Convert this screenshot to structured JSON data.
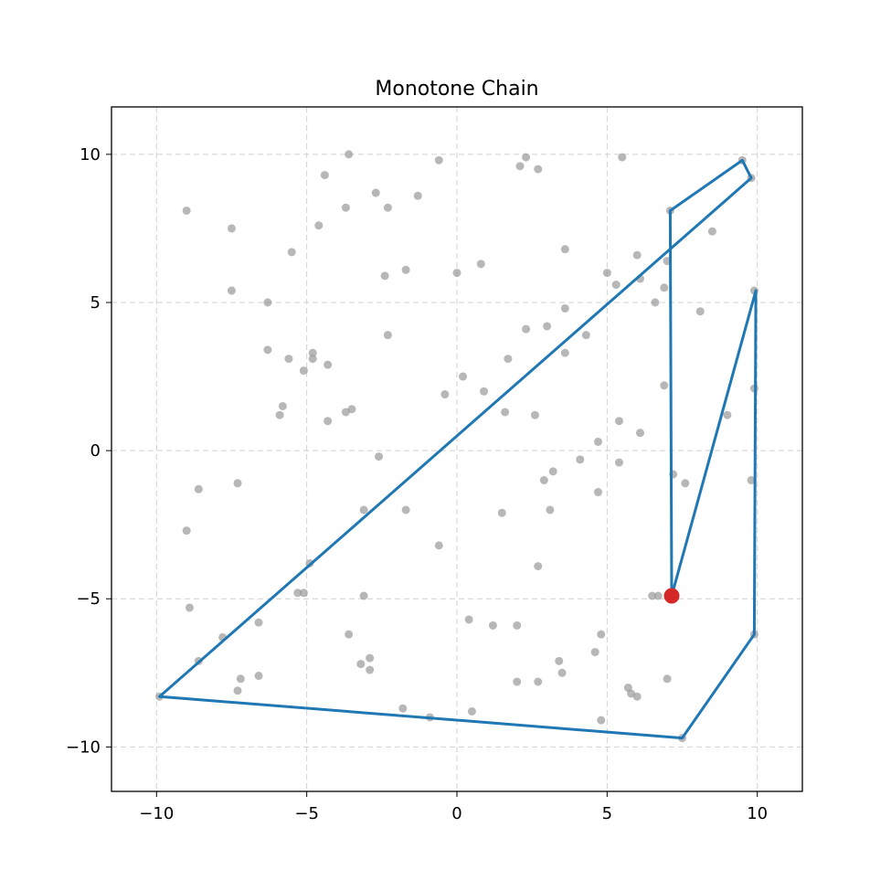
{
  "chart_data": {
    "type": "scatter",
    "title": "Monotone Chain",
    "xlabel": "",
    "ylabel": "",
    "xlim": [
      -11.5,
      11.5
    ],
    "ylim": [
      -11.5,
      11.6
    ],
    "xticks": [
      -10,
      -5,
      0,
      5,
      10
    ],
    "yticks": [
      -10,
      -5,
      0,
      5,
      10
    ],
    "xtick_labels": [
      "−10",
      "−5",
      "0",
      "5",
      "10"
    ],
    "ytick_labels": [
      "−10",
      "−5",
      "0",
      "5",
      "10"
    ],
    "grid": true,
    "point_color": "#999999",
    "hull_color": "#1f77b4",
    "highlight_color": "#d62728",
    "points": [
      [
        -3.6,
        10.0
      ],
      [
        -0.6,
        9.8
      ],
      [
        2.3,
        9.9
      ],
      [
        5.5,
        9.9
      ],
      [
        2.1,
        9.6
      ],
      [
        2.7,
        9.5
      ],
      [
        9.5,
        9.8
      ],
      [
        9.8,
        9.2
      ],
      [
        -4.4,
        9.3
      ],
      [
        -2.7,
        8.7
      ],
      [
        -1.3,
        8.6
      ],
      [
        -3.7,
        8.2
      ],
      [
        -2.3,
        8.2
      ],
      [
        -9.0,
        8.1
      ],
      [
        7.1,
        8.1
      ],
      [
        -7.5,
        7.5
      ],
      [
        -4.6,
        7.6
      ],
      [
        8.5,
        7.4
      ],
      [
        -5.5,
        6.7
      ],
      [
        3.6,
        6.8
      ],
      [
        6.0,
        6.6
      ],
      [
        7.0,
        6.4
      ],
      [
        0.8,
        6.3
      ],
      [
        -1.7,
        6.1
      ],
      [
        -2.4,
        5.9
      ],
      [
        0.0,
        6.0
      ],
      [
        5.0,
        6.0
      ],
      [
        6.1,
        5.8
      ],
      [
        5.3,
        5.6
      ],
      [
        6.9,
        5.5
      ],
      [
        -7.5,
        5.4
      ],
      [
        9.9,
        5.4
      ],
      [
        -6.3,
        5.0
      ],
      [
        6.6,
        5.0
      ],
      [
        3.6,
        4.8
      ],
      [
        8.1,
        4.7
      ],
      [
        3.0,
        4.2
      ],
      [
        2.3,
        4.1
      ],
      [
        4.3,
        3.9
      ],
      [
        -2.3,
        3.9
      ],
      [
        -6.3,
        3.4
      ],
      [
        3.6,
        3.3
      ],
      [
        -4.8,
        3.3
      ],
      [
        -5.6,
        3.1
      ],
      [
        -4.8,
        3.1
      ],
      [
        1.7,
        3.1
      ],
      [
        -4.3,
        2.9
      ],
      [
        -5.1,
        2.7
      ],
      [
        0.2,
        2.5
      ],
      [
        6.9,
        2.2
      ],
      [
        9.9,
        2.1
      ],
      [
        0.9,
        2.0
      ],
      [
        -0.4,
        1.9
      ],
      [
        -5.8,
        1.5
      ],
      [
        -3.5,
        1.4
      ],
      [
        -3.7,
        1.3
      ],
      [
        -5.9,
        1.2
      ],
      [
        1.6,
        1.3
      ],
      [
        2.6,
        1.2
      ],
      [
        9.0,
        1.2
      ],
      [
        -4.3,
        1.0
      ],
      [
        5.4,
        1.0
      ],
      [
        6.1,
        0.6
      ],
      [
        4.7,
        0.3
      ],
      [
        -2.6,
        -0.2
      ],
      [
        4.1,
        -0.3
      ],
      [
        5.4,
        -0.4
      ],
      [
        3.2,
        -0.7
      ],
      [
        7.2,
        -0.8
      ],
      [
        2.9,
        -1.0
      ],
      [
        9.8,
        -1.0
      ],
      [
        7.6,
        -1.1
      ],
      [
        -8.6,
        -1.3
      ],
      [
        -7.3,
        -1.1
      ],
      [
        4.7,
        -1.4
      ],
      [
        -3.1,
        -2.0
      ],
      [
        -1.7,
        -2.0
      ],
      [
        3.1,
        -2.0
      ],
      [
        1.5,
        -2.1
      ],
      [
        -9.0,
        -2.7
      ],
      [
        -0.6,
        -3.2
      ],
      [
        2.7,
        -3.9
      ],
      [
        -4.9,
        -3.8
      ],
      [
        -5.3,
        -4.8
      ],
      [
        -5.1,
        -4.8
      ],
      [
        -3.1,
        -4.9
      ],
      [
        6.5,
        -4.9
      ],
      [
        6.7,
        -4.9
      ],
      [
        -8.9,
        -5.3
      ],
      [
        0.4,
        -5.7
      ],
      [
        -6.6,
        -5.8
      ],
      [
        1.2,
        -5.9
      ],
      [
        2.0,
        -5.9
      ],
      [
        -3.6,
        -6.2
      ],
      [
        4.8,
        -6.2
      ],
      [
        9.9,
        -6.2
      ],
      [
        -7.8,
        -6.3
      ],
      [
        4.6,
        -6.8
      ],
      [
        -8.6,
        -7.1
      ],
      [
        -2.9,
        -7.0
      ],
      [
        -3.2,
        -7.2
      ],
      [
        3.4,
        -7.1
      ],
      [
        -2.9,
        -7.4
      ],
      [
        3.5,
        -7.5
      ],
      [
        -6.6,
        -7.6
      ],
      [
        -7.2,
        -7.7
      ],
      [
        7.0,
        -7.7
      ],
      [
        2.0,
        -7.8
      ],
      [
        2.7,
        -7.8
      ],
      [
        5.7,
        -8.0
      ],
      [
        5.8,
        -8.2
      ],
      [
        6.0,
        -8.3
      ],
      [
        -7.3,
        -8.1
      ],
      [
        -9.9,
        -8.3
      ],
      [
        -1.8,
        -8.7
      ],
      [
        -0.9,
        -9.0
      ],
      [
        0.5,
        -8.8
      ],
      [
        4.8,
        -9.1
      ],
      [
        7.5,
        -9.7
      ]
    ],
    "hull_path": [
      [
        7.15,
        -4.9
      ],
      [
        7.1,
        8.1
      ],
      [
        9.5,
        9.8
      ],
      [
        9.8,
        9.2
      ],
      [
        -9.9,
        -8.3
      ],
      [
        7.5,
        -9.7
      ],
      [
        9.9,
        -6.2
      ],
      [
        9.95,
        5.4
      ],
      [
        7.15,
        -4.9
      ]
    ],
    "highlight_point": [
      7.15,
      -4.9
    ]
  }
}
